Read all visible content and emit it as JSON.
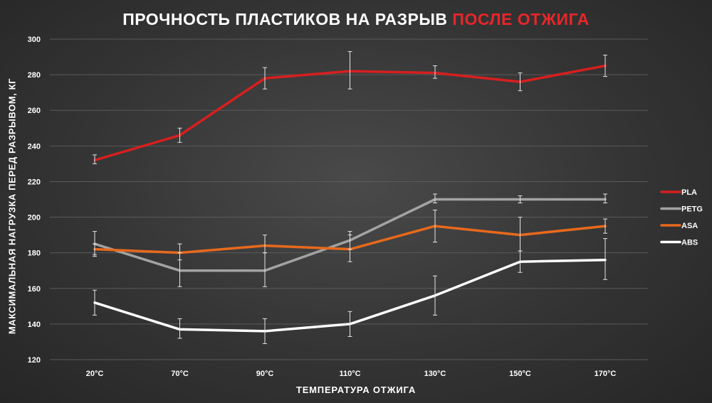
{
  "chart_data": {
    "type": "line",
    "title_main": "ПРОЧНОСТЬ ПЛАСТИКОВ НА РАЗРЫВ",
    "title_accent": "ПОСЛЕ ОТЖИГА",
    "xlabel": "ТЕМПЕРАТУРА ОТЖИГА",
    "ylabel": "МАКСИМАЛЬНАЯ НАГРУЗКА ПЕРЕД РАЗРЫВОМ, КГ",
    "categories": [
      "20°C",
      "70°C",
      "90°C",
      "110°C",
      "130°C",
      "150°C",
      "170°C"
    ],
    "ylim": [
      120,
      300
    ],
    "yticks": [
      120,
      140,
      160,
      180,
      200,
      220,
      240,
      260,
      280,
      300
    ],
    "grid": true,
    "legend_position": "right",
    "series": [
      {
        "name": "PLA",
        "color": "#d71f1f",
        "values": [
          232,
          246,
          278,
          282,
          281,
          276,
          285
        ],
        "err_low": [
          230,
          242,
          272,
          272,
          278,
          271,
          279
        ],
        "err_high": [
          235,
          250,
          284,
          293,
          285,
          281,
          291
        ]
      },
      {
        "name": "PETG",
        "color": "#a3a3a3",
        "values": [
          185,
          170,
          170,
          187,
          210,
          210,
          210
        ],
        "err_low": [
          178,
          161,
          161,
          182,
          208,
          208,
          208
        ],
        "err_high": [
          192,
          180,
          180,
          192,
          213,
          212,
          213
        ]
      },
      {
        "name": "ASA",
        "color": "#e8691c",
        "values": [
          182,
          180,
          184,
          182,
          195,
          190,
          195
        ],
        "err_low": [
          179,
          176,
          180,
          175,
          186,
          181,
          191
        ],
        "err_high": [
          185,
          185,
          190,
          190,
          204,
          200,
          199
        ]
      },
      {
        "name": "ABS",
        "color": "#ffffff",
        "values": [
          152,
          137,
          136,
          140,
          156,
          175,
          176
        ],
        "err_low": [
          145,
          132,
          129,
          133,
          145,
          169,
          165
        ],
        "err_high": [
          159,
          143,
          143,
          147,
          167,
          181,
          188
        ]
      }
    ]
  }
}
